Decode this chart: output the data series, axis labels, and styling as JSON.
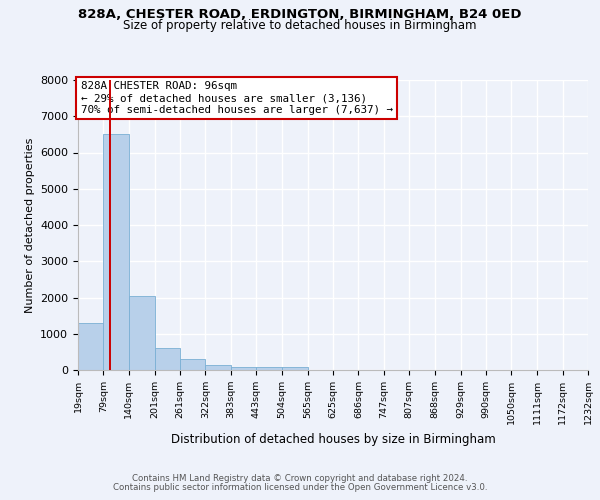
{
  "title1": "828A, CHESTER ROAD, ERDINGTON, BIRMINGHAM, B24 0ED",
  "title2": "Size of property relative to detached houses in Birmingham",
  "xlabel": "Distribution of detached houses by size in Birmingham",
  "ylabel": "Number of detached properties",
  "bar_color": "#b8d0ea",
  "bar_edge_color": "#7aafd4",
  "bin_edges": [
    19,
    79,
    140,
    201,
    261,
    322,
    383,
    443,
    504,
    565,
    625,
    686,
    747,
    807,
    868,
    929,
    990,
    1050,
    1111,
    1172,
    1232
  ],
  "bin_labels": [
    "19sqm",
    "79sqm",
    "140sqm",
    "201sqm",
    "261sqm",
    "322sqm",
    "383sqm",
    "443sqm",
    "504sqm",
    "565sqm",
    "625sqm",
    "686sqm",
    "747sqm",
    "807sqm",
    "868sqm",
    "929sqm",
    "990sqm",
    "1050sqm",
    "1111sqm",
    "1172sqm",
    "1232sqm"
  ],
  "counts": [
    1300,
    6500,
    2050,
    620,
    290,
    130,
    70,
    70,
    90,
    0,
    0,
    0,
    0,
    0,
    0,
    0,
    0,
    0,
    0,
    0
  ],
  "property_line_x": 96,
  "vline_color": "#cc0000",
  "annotation_text": "828A CHESTER ROAD: 96sqm\n← 29% of detached houses are smaller (3,136)\n70% of semi-detached houses are larger (7,637) →",
  "annotation_box_color": "#ffffff",
  "annotation_box_edge": "#cc0000",
  "ylim": [
    0,
    8000
  ],
  "yticks": [
    0,
    1000,
    2000,
    3000,
    4000,
    5000,
    6000,
    7000,
    8000
  ],
  "footer1": "Contains HM Land Registry data © Crown copyright and database right 2024.",
  "footer2": "Contains public sector information licensed under the Open Government Licence v3.0.",
  "bg_color": "#eef2fa",
  "grid_color": "#ffffff"
}
